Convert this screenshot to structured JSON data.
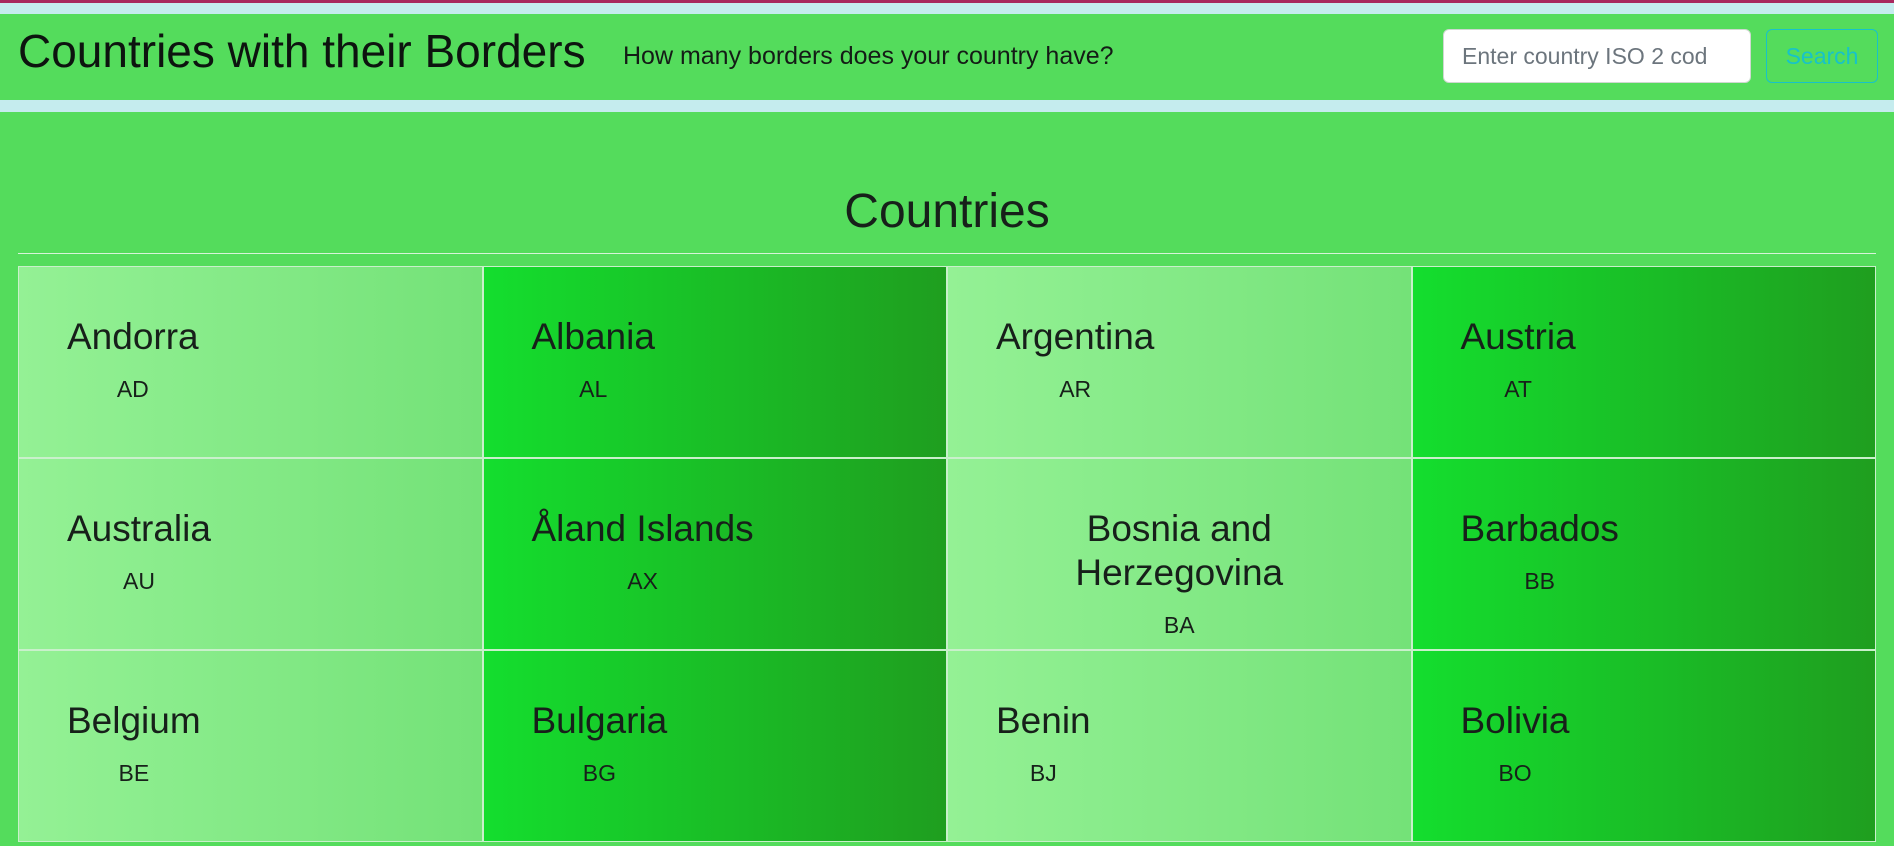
{
  "header": {
    "brand": "Countries with their Borders",
    "tagline": "How many borders does your country have?",
    "search_placeholder": "Enter country ISO 2 cod",
    "search_value": "",
    "search_button": "Search"
  },
  "main": {
    "title": "Countries",
    "countries": [
      {
        "name": "Andorra",
        "code": "AD"
      },
      {
        "name": "Albania",
        "code": "AL"
      },
      {
        "name": "Argentina",
        "code": "AR"
      },
      {
        "name": "Austria",
        "code": "AT"
      },
      {
        "name": "Australia",
        "code": "AU"
      },
      {
        "name": "Åland Islands",
        "code": "AX"
      },
      {
        "name": "Bosnia and Herzegovina",
        "code": "BA"
      },
      {
        "name": "Barbados",
        "code": "BB"
      },
      {
        "name": "Belgium",
        "code": "BE"
      },
      {
        "name": "Bulgaria",
        "code": "BG"
      },
      {
        "name": "Benin",
        "code": "BJ"
      },
      {
        "name": "Bolivia",
        "code": "BO"
      }
    ]
  },
  "colors": {
    "background": "#54dc5c",
    "card_light": "#94f195",
    "card_dark": "#14de2e",
    "search_button": "#17c3c9"
  }
}
